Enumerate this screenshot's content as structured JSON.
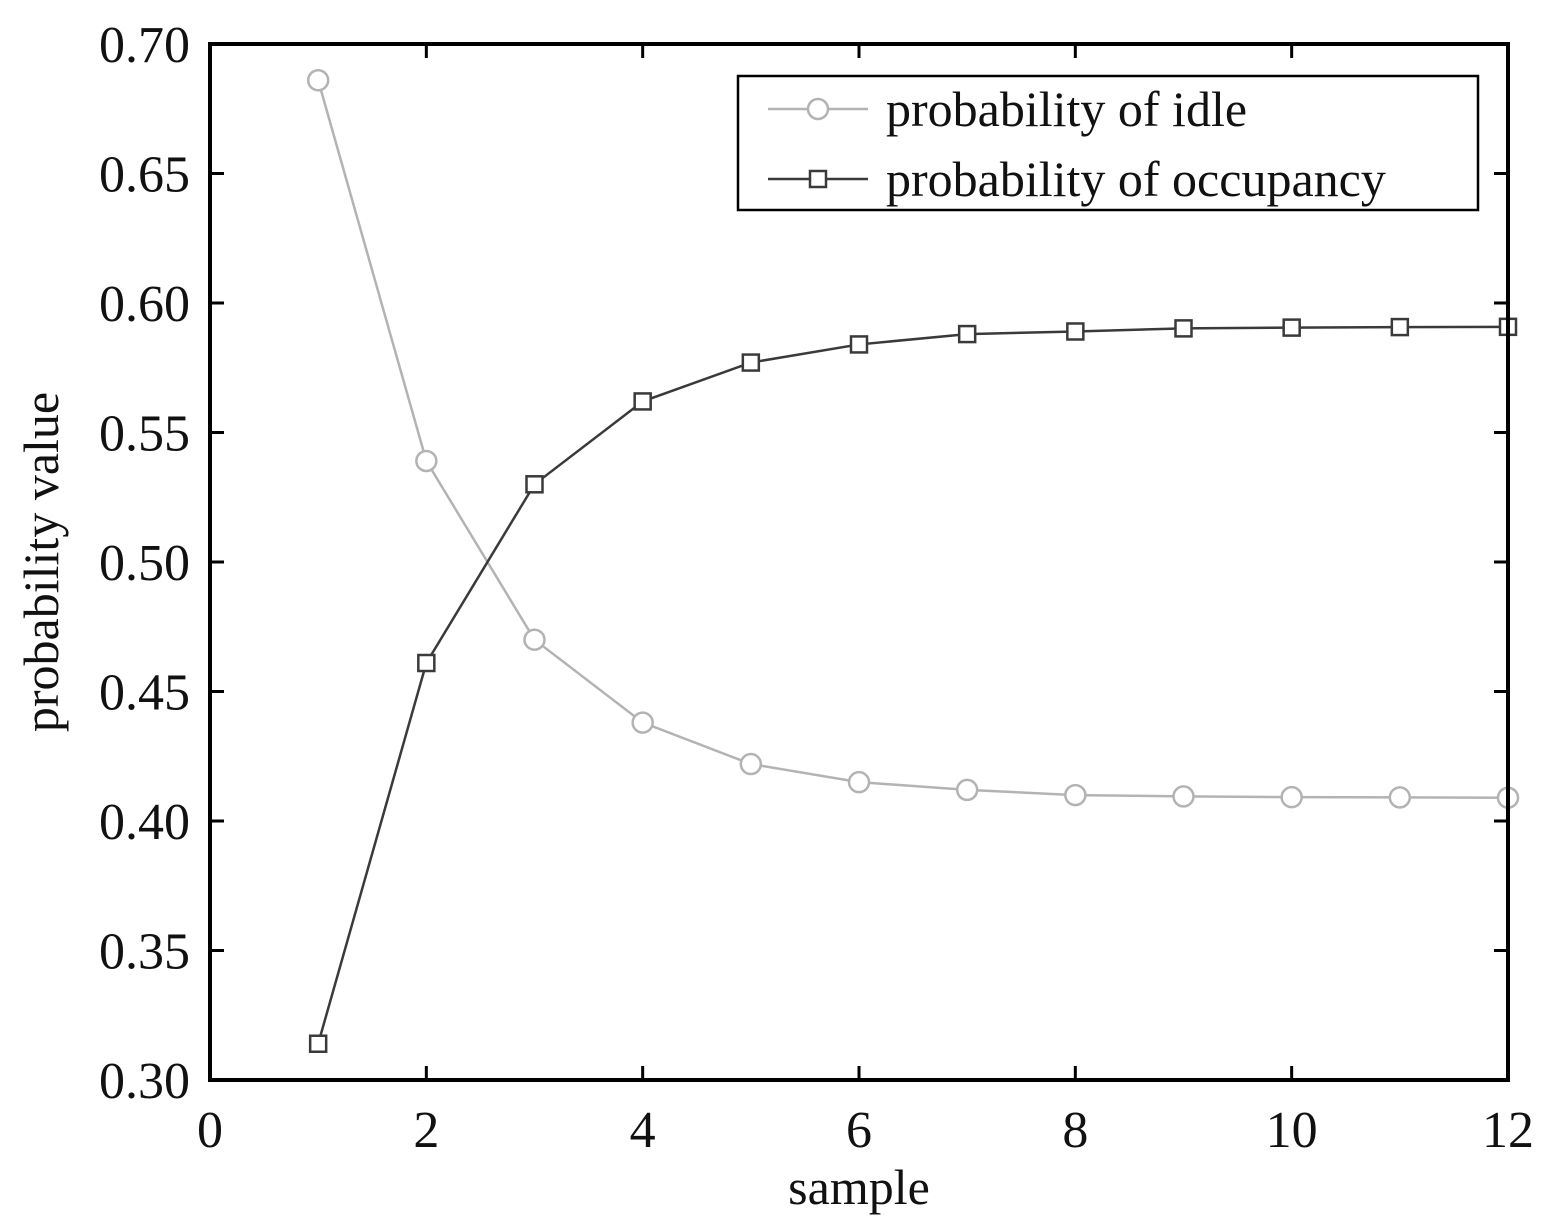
{
  "chart_data": {
    "type": "line",
    "xlabel": "sample",
    "ylabel": "probability value",
    "xlim": [
      0,
      12
    ],
    "ylim": [
      0.3,
      0.7
    ],
    "x_ticks": [
      0,
      2,
      4,
      6,
      8,
      10,
      12
    ],
    "x_tick_labels": [
      "0",
      "2",
      "4",
      "6",
      "8",
      "10",
      "12"
    ],
    "y_ticks": [
      0.3,
      0.35,
      0.4,
      0.45,
      0.5,
      0.55,
      0.6,
      0.65,
      0.7
    ],
    "y_tick_labels": [
      "0.30",
      "0.35",
      "0.40",
      "0.45",
      "0.50",
      "0.55",
      "0.60",
      "0.65",
      "0.70"
    ],
    "grid": false,
    "legend_position": "top-right",
    "x": [
      1,
      2,
      3,
      4,
      5,
      6,
      7,
      8,
      9,
      10,
      11,
      12
    ],
    "series": [
      {
        "name": "probability of idle",
        "marker": "circle",
        "color": "#b3b3b3",
        "values": [
          0.686,
          0.539,
          0.47,
          0.438,
          0.422,
          0.415,
          0.412,
          0.41,
          0.4095,
          0.4092,
          0.4091,
          0.409
        ]
      },
      {
        "name": "probability of occupancy",
        "marker": "square",
        "color": "#3a3a3a",
        "values": [
          0.314,
          0.461,
          0.53,
          0.562,
          0.577,
          0.584,
          0.588,
          0.589,
          0.5902,
          0.5905,
          0.5907,
          0.5908
        ]
      }
    ]
  }
}
